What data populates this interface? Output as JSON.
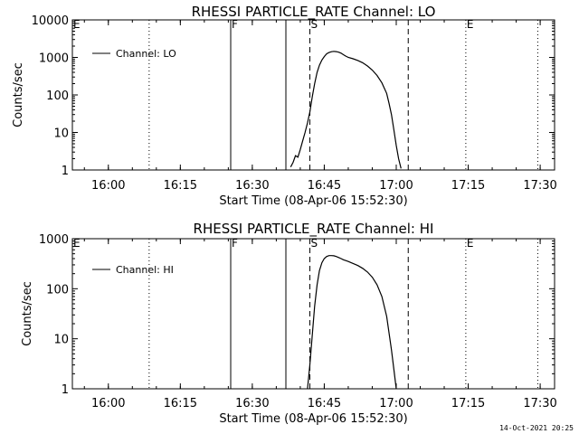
{
  "footer": {
    "timestamp": "14-Oct-2021 20:25"
  },
  "chart_data": [
    {
      "type": "line",
      "title": "RHESSI PARTICLE_RATE Channel: LO",
      "xlabel": "Start Time (08-Apr-06 15:52:30)",
      "ylabel": "Counts/sec",
      "yscale": "log",
      "ylim": [
        1,
        10000
      ],
      "yticks": [
        "1",
        "10",
        "100",
        "1000",
        "10000"
      ],
      "xlim": [
        "15:52:30",
        "17:33:00"
      ],
      "xticks": [
        "16:00",
        "16:15",
        "16:30",
        "16:45",
        "17:00",
        "17:15",
        "17:30"
      ],
      "legend": {
        "position": "top-left",
        "entries": [
          "Channel: LO"
        ]
      },
      "markers": [
        {
          "time": "16:08:30",
          "style": "dotted",
          "label": ""
        },
        {
          "time": "16:25:30",
          "style": "solid",
          "label": "F"
        },
        {
          "time": "16:37:00",
          "style": "solid",
          "label": ""
        },
        {
          "time": "16:42:00",
          "style": "dashed",
          "label": "S"
        },
        {
          "time": "17:02:30",
          "style": "dashed",
          "label": ""
        },
        {
          "time": "17:14:30",
          "style": "dotted",
          "label": "E"
        },
        {
          "time": "17:29:30",
          "style": "dotted",
          "label": ""
        }
      ],
      "corner_label": "E",
      "series": [
        {
          "name": "Channel: LO",
          "x": [
            "16:38:00",
            "16:38:30",
            "16:39:00",
            "16:39:30",
            "16:40:00",
            "16:40:30",
            "16:41:00",
            "16:41:30",
            "16:42:00",
            "16:42:30",
            "16:43:00",
            "16:43:30",
            "16:44:00",
            "16:44:30",
            "16:45:00",
            "16:45:30",
            "16:46:00",
            "16:46:30",
            "16:47:00",
            "16:47:30",
            "16:48:00",
            "16:48:30",
            "16:49:00",
            "16:49:30",
            "16:50:00",
            "16:51:00",
            "16:52:00",
            "16:53:00",
            "16:54:00",
            "16:55:00",
            "16:56:00",
            "16:57:00",
            "16:58:00",
            "16:58:30",
            "16:59:00",
            "16:59:30",
            "17:00:00",
            "17:00:30",
            "17:01:00"
          ],
          "y": [
            1.2,
            1.6,
            2.4,
            2.2,
            3.5,
            6,
            10,
            18,
            35,
            90,
            200,
            400,
            620,
            850,
            1050,
            1250,
            1350,
            1420,
            1450,
            1430,
            1380,
            1300,
            1180,
            1080,
            1000,
            920,
            830,
            720,
            590,
            460,
            330,
            210,
            110,
            60,
            30,
            12,
            4.5,
            2,
            1.1
          ]
        }
      ]
    },
    {
      "type": "line",
      "title": "RHESSI PARTICLE_RATE Channel: HI",
      "xlabel": "Start Time (08-Apr-06 15:52:30)",
      "ylabel": "Counts/sec",
      "yscale": "log",
      "ylim": [
        1,
        1000
      ],
      "yticks": [
        "1",
        "10",
        "100",
        "1000"
      ],
      "xlim": [
        "15:52:30",
        "17:33:00"
      ],
      "xticks": [
        "16:00",
        "16:15",
        "16:30",
        "16:45",
        "17:00",
        "17:15",
        "17:30"
      ],
      "legend": {
        "position": "top-left",
        "entries": [
          "Channel: HI"
        ]
      },
      "markers": [
        {
          "time": "16:08:30",
          "style": "dotted",
          "label": ""
        },
        {
          "time": "16:25:30",
          "style": "solid",
          "label": "F"
        },
        {
          "time": "16:37:00",
          "style": "solid",
          "label": ""
        },
        {
          "time": "16:42:00",
          "style": "dashed",
          "label": "S"
        },
        {
          "time": "17:02:30",
          "style": "dashed",
          "label": ""
        },
        {
          "time": "17:14:30",
          "style": "dotted",
          "label": "E"
        },
        {
          "time": "17:29:30",
          "style": "dotted",
          "label": ""
        }
      ],
      "corner_label": "E",
      "series": [
        {
          "name": "Channel: HI",
          "x": [
            "16:41:30",
            "16:42:00",
            "16:42:30",
            "16:43:00",
            "16:43:30",
            "16:44:00",
            "16:44:30",
            "16:45:00",
            "16:45:30",
            "16:46:00",
            "16:46:30",
            "16:47:00",
            "16:47:30",
            "16:48:00",
            "16:48:30",
            "16:49:00",
            "16:50:00",
            "16:51:00",
            "16:52:00",
            "16:53:00",
            "16:54:00",
            "16:55:00",
            "16:56:00",
            "16:57:00",
            "16:58:00",
            "16:59:00",
            "16:59:30",
            "17:00:00"
          ],
          "y": [
            1,
            3,
            12,
            45,
            120,
            230,
            330,
            400,
            440,
            460,
            460,
            455,
            440,
            420,
            400,
            380,
            350,
            320,
            290,
            255,
            215,
            170,
            120,
            70,
            28,
            6,
            2.5,
            1
          ]
        }
      ]
    }
  ]
}
